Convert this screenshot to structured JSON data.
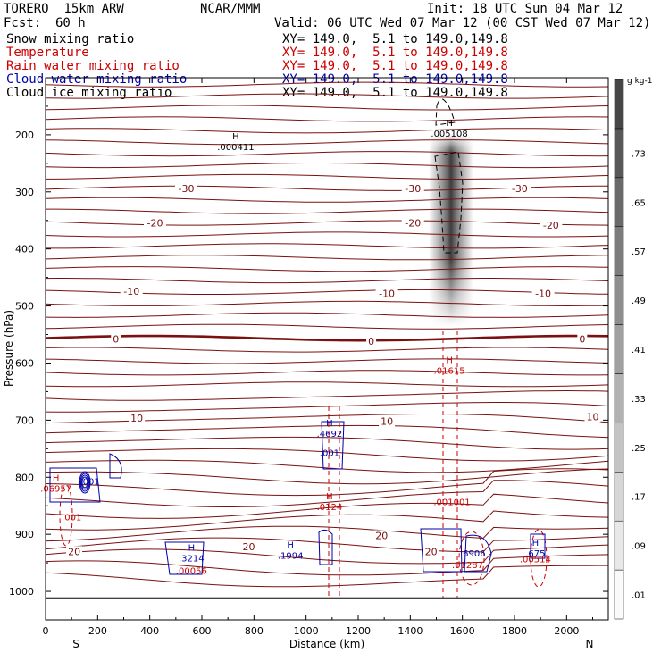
{
  "header": {
    "model": "TORERO  15km ARW",
    "org": "NCAR/MMM",
    "init": "Init: 18 UTC Sun 04 Mar 12",
    "fcst_label": "Fcst:",
    "fcst_value": "60 h",
    "valid": "Valid: 06 UTC Wed 07 Mar 12 (00 CST Wed 07 Mar 12)"
  },
  "fields": [
    {
      "name": "Snow mixing ratio",
      "xy": "XY= 149.0,  5.1 to 149.0,149.8",
      "color": "#000000"
    },
    {
      "name": "Temperature",
      "xy": "XY= 149.0,  5.1 to 149.0,149.8",
      "color": "#cc0000"
    },
    {
      "name": "Rain water mixing ratio",
      "xy": "XY= 149.0,  5.1 to 149.0,149.8",
      "color": "#cc0000"
    },
    {
      "name": "Cloud water mixing ratio",
      "xy": "XY= 149.0,  5.1 to 149.0,149.8",
      "color": "#0000aa"
    },
    {
      "name": "Cloud ice mixing ratio",
      "xy": "XY= 149.0,  5.1 to 149.0,149.8",
      "color": "#000000"
    }
  ],
  "chart_data": {
    "type": "cross-section",
    "xlabel": "Distance (km)",
    "ylabel": "Pressure (hPa)",
    "xlim": [
      0,
      2160
    ],
    "ylim": [
      100,
      1050
    ],
    "xticks": [
      0,
      200,
      400,
      600,
      800,
      1000,
      1200,
      1400,
      1600,
      1800,
      2000
    ],
    "yticks": [
      200,
      300,
      400,
      500,
      600,
      700,
      800,
      900,
      1000
    ],
    "x_ends": {
      "left": "S",
      "right": "N"
    },
    "colorbar": {
      "unit": "g kg-1",
      "ticks": [
        ".01",
        ".09",
        ".17",
        ".25",
        ".33",
        ".41",
        ".49",
        ".57",
        ".65",
        ".73"
      ]
    },
    "temperature_labels": [
      {
        "text": "-30",
        "x": 540,
        "p": 294
      },
      {
        "text": "-30",
        "x": 1410,
        "p": 294
      },
      {
        "text": "-30",
        "x": 1820,
        "p": 294
      },
      {
        "text": "-20",
        "x": 420,
        "p": 354
      },
      {
        "text": "-20",
        "x": 1410,
        "p": 354
      },
      {
        "text": "-20",
        "x": 1940,
        "p": 358
      },
      {
        "text": "-10",
        "x": 330,
        "p": 474
      },
      {
        "text": "-10",
        "x": 1310,
        "p": 478
      },
      {
        "text": "-10",
        "x": 1910,
        "p": 478
      },
      {
        "text": "0",
        "x": 270,
        "p": 558
      },
      {
        "text": "0",
        "x": 1250,
        "p": 562
      },
      {
        "text": "0",
        "x": 2060,
        "p": 558
      },
      {
        "text": "10",
        "x": 350,
        "p": 696
      },
      {
        "text": "10",
        "x": 1310,
        "p": 702
      },
      {
        "text": "10",
        "x": 2100,
        "p": 694
      },
      {
        "text": "20",
        "x": 110,
        "p": 930
      },
      {
        "text": "20",
        "x": 780,
        "p": 922
      },
      {
        "text": "20",
        "x": 1290,
        "p": 902
      },
      {
        "text": "20",
        "x": 1480,
        "p": 930
      }
    ],
    "maxima_labels": [
      {
        "mark": "H",
        "value": "000411",
        "x": 730,
        "p": 224,
        "color": "#000000"
      },
      {
        "mark": "H",
        "value": "005108",
        "x": 1550,
        "p": 200,
        "color": "#000000"
      },
      {
        "mark": "H",
        "value": "01615",
        "x": 1550,
        "p": 616,
        "color": "#cc0000"
      },
      {
        "mark": "H",
        "value": "4692",
        "x": 1090,
        "p": 726,
        "color": "#0000aa"
      },
      {
        "mark": "",
        "value": "001",
        "x": 1090,
        "p": 760,
        "color": "#0000aa"
      },
      {
        "mark": "H",
        "value": "0124",
        "x": 1090,
        "p": 854,
        "color": "#cc0000"
      },
      {
        "mark": "H",
        "value": "06957",
        "x": 40,
        "p": 822,
        "color": "#cc0000"
      },
      {
        "mark": "",
        "value": "001",
        "x": 170,
        "p": 810,
        "color": "#0000aa"
      },
      {
        "mark": "",
        "value": "001",
        "x": 100,
        "p": 872,
        "color": "#cc0000"
      },
      {
        "mark": "H",
        "value": "3214",
        "x": 560,
        "p": 944,
        "color": "#0000aa"
      },
      {
        "mark": "",
        "value": "00056",
        "x": 560,
        "p": 966,
        "color": "#cc0000"
      },
      {
        "mark": "H",
        "value": "1994",
        "x": 940,
        "p": 940,
        "color": "#0000aa"
      },
      {
        "mark": "",
        "value": "001001",
        "x": 1560,
        "p": 846,
        "color": "#cc0000"
      },
      {
        "mark": "",
        "value": "6906",
        "x": 1640,
        "p": 936,
        "color": "#0000aa"
      },
      {
        "mark": "",
        "value": "01287",
        "x": 1620,
        "p": 956,
        "color": "#cc0000"
      },
      {
        "mark": "H",
        "value": "675",
        "x": 1880,
        "p": 936,
        "color": "#0000aa"
      },
      {
        "mark": "",
        "value": "00514",
        "x": 1880,
        "p": 946,
        "color": "#cc0000"
      }
    ]
  }
}
